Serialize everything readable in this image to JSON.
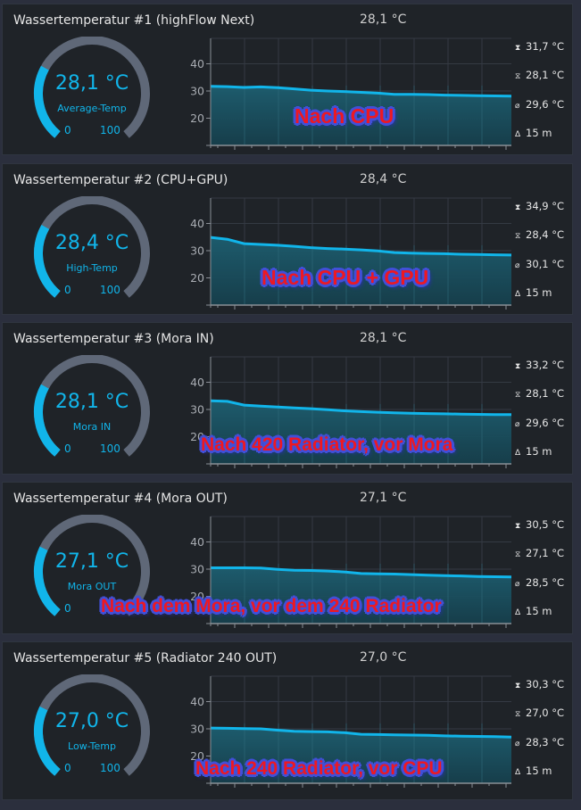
{
  "colors": {
    "accent": "#11b5ea",
    "gauge_track": "#5f6878",
    "panel_bg": "#1f2328",
    "area_fill": "#1b5566",
    "overlay_text": "#ee1822",
    "overlay_outline": "#4250d8"
  },
  "panels": [
    {
      "title": "Wassertemperatur #1 (highFlow Next)",
      "current": "28,1 °C",
      "gauge": {
        "value": "28,1 °C",
        "label": "Average-Temp",
        "min": "0",
        "max": "100",
        "percent": 28.1
      },
      "stats": {
        "max": "31,7 °C",
        "min": "28,1 °C",
        "avg": "29,6 °C",
        "duration": "15 m"
      },
      "overlay": "Nach CPU"
    },
    {
      "title": "Wassertemperatur #2 (CPU+GPU)",
      "current": "28,4 °C",
      "gauge": {
        "value": "28,4 °C",
        "label": "High-Temp",
        "min": "0",
        "max": "100",
        "percent": 28.4
      },
      "stats": {
        "max": "34,9 °C",
        "min": "28,4 °C",
        "avg": "30,1 °C",
        "duration": "15 m"
      },
      "overlay": "Nach CPU + GPU"
    },
    {
      "title": "Wassertemperatur #3 (Mora IN)",
      "current": "28,1 °C",
      "gauge": {
        "value": "28,1 °C",
        "label": "Mora IN",
        "min": "0",
        "max": "100",
        "percent": 28.1
      },
      "stats": {
        "max": "33,2 °C",
        "min": "28,1 °C",
        "avg": "29,6 °C",
        "duration": "15 m"
      },
      "overlay": "Nach 420 Radiator, vor Mora"
    },
    {
      "title": "Wassertemperatur #4 (Mora OUT)",
      "current": "27,1 °C",
      "gauge": {
        "value": "27,1 °C",
        "label": "Mora OUT",
        "min": "0",
        "max": "100",
        "percent": 27.1
      },
      "stats": {
        "max": "30,5 °C",
        "min": "27,1 °C",
        "avg": "28,5 °C",
        "duration": "15 m"
      },
      "overlay": "Nach dem Mora, vor dem 240 Radiator"
    },
    {
      "title": "Wassertemperatur #5 (Radiator 240 OUT)",
      "current": "27,0 °C",
      "gauge": {
        "value": "27,0 °C",
        "label": "Low-Temp",
        "min": "0",
        "max": "100",
        "percent": 27.0
      },
      "stats": {
        "max": "30,3 °C",
        "min": "27,0 °C",
        "avg": "28,3 °C",
        "duration": "15 m"
      },
      "overlay": "Nach 240 Radiator, vor CPU"
    }
  ],
  "chart_data": [
    {
      "type": "area",
      "title": "Wassertemperatur #1 (highFlow Next)",
      "ylabel": "°C",
      "yticks": [
        "20",
        "30",
        "40"
      ],
      "ylim": [
        10,
        50
      ],
      "xlabel": "15 m",
      "values": [
        31.7,
        31.6,
        31.3,
        31.5,
        31.2,
        30.8,
        30.3,
        30.0,
        29.8,
        29.5,
        29.2,
        28.8,
        28.8,
        28.7,
        28.5,
        28.4,
        28.3,
        28.2,
        28.1
      ]
    },
    {
      "type": "area",
      "title": "Wassertemperatur #2 (CPU+GPU)",
      "ylabel": "°C",
      "yticks": [
        "20",
        "30",
        "40"
      ],
      "ylim": [
        10,
        50
      ],
      "xlabel": "15 m",
      "values": [
        34.9,
        34.2,
        32.6,
        32.3,
        32.0,
        31.6,
        31.1,
        30.8,
        30.6,
        30.3,
        29.9,
        29.3,
        29.1,
        29.0,
        28.9,
        28.7,
        28.6,
        28.5,
        28.4
      ]
    },
    {
      "type": "area",
      "title": "Wassertemperatur #3 (Mora IN)",
      "ylabel": "°C",
      "yticks": [
        "20",
        "30",
        "40"
      ],
      "ylim": [
        10,
        50
      ],
      "xlabel": "15 m",
      "values": [
        33.2,
        33.0,
        31.6,
        31.2,
        30.9,
        30.6,
        30.3,
        29.9,
        29.5,
        29.2,
        29.0,
        28.8,
        28.6,
        28.5,
        28.4,
        28.3,
        28.2,
        28.1,
        28.1
      ]
    },
    {
      "type": "area",
      "title": "Wassertemperatur #4 (Mora OUT)",
      "ylabel": "°C",
      "yticks": [
        "20",
        "30",
        "40"
      ],
      "ylim": [
        10,
        50
      ],
      "xlabel": "15 m",
      "values": [
        30.5,
        30.5,
        30.5,
        30.4,
        29.9,
        29.6,
        29.5,
        29.3,
        29.0,
        28.4,
        28.3,
        28.2,
        28.0,
        27.8,
        27.6,
        27.5,
        27.3,
        27.2,
        27.1
      ]
    },
    {
      "type": "area",
      "title": "Wassertemperatur #5 (Radiator 240 OUT)",
      "ylabel": "°C",
      "yticks": [
        "20",
        "30",
        "40"
      ],
      "ylim": [
        10,
        50
      ],
      "xlabel": "15 m",
      "values": [
        30.3,
        30.2,
        30.1,
        30.0,
        29.5,
        29.1,
        29.0,
        28.9,
        28.6,
        28.0,
        27.9,
        27.8,
        27.7,
        27.6,
        27.4,
        27.3,
        27.2,
        27.1,
        27.0
      ]
    }
  ]
}
